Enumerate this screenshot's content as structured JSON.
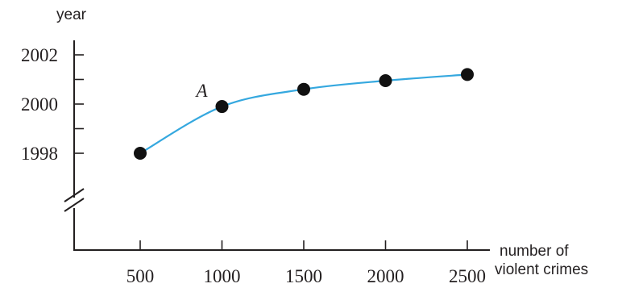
{
  "chart_data": {
    "type": "scatter",
    "ylabel": "year",
    "xlabel_lines": [
      "number of",
      "violent crimes"
    ],
    "x": [
      500,
      1000,
      1500,
      2000,
      2500
    ],
    "y": [
      1998,
      1999.9,
      2000.6,
      2000.95,
      2001.2
    ],
    "x_ticks": [
      500,
      1000,
      1500,
      2000,
      2500
    ],
    "y_labeled_ticks": [
      1998,
      2000,
      2002
    ],
    "y_minor_ticks": [
      1999,
      2001
    ],
    "xlim": [
      100,
      2600
    ],
    "ylim": [
      1998,
      2002
    ],
    "axis_break_on_y": true,
    "fitted_curve": true,
    "annotations": [
      {
        "text": "A",
        "x": 1000,
        "y": 1999.9
      }
    ],
    "colors": {
      "curve": "#35a8df",
      "points": "#111111",
      "axes": "#231f20"
    },
    "grid": false
  }
}
